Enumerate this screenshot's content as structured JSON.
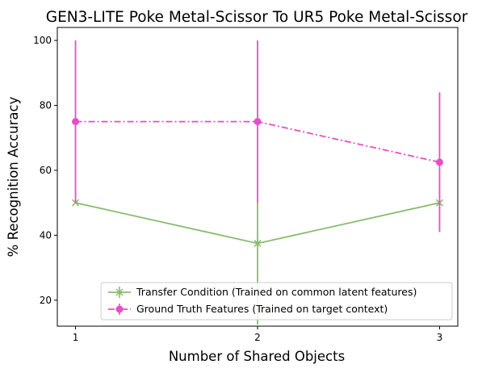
{
  "chart_data": {
    "type": "line",
    "title": "GEN3-LITE Poke Metal-Scissor To UR5 Poke Metal-Scissor",
    "xlabel": "Number of Shared Objects",
    "ylabel": "% Recognition Accuracy",
    "x": [
      1,
      2,
      3
    ],
    "xlim": [
      0.9,
      3.1
    ],
    "ylim": [
      12,
      104
    ],
    "xticks": [
      1,
      2,
      3
    ],
    "yticks": [
      20,
      40,
      60,
      80,
      100
    ],
    "grid": false,
    "legend_position": "lower-right",
    "series": [
      {
        "name": "Transfer Condition (Trained on common latent features)",
        "color": "#88bb6e",
        "linestyle": "solid",
        "marker": "x",
        "values": [
          50,
          37.5,
          50
        ],
        "err_low": [
          50,
          12.5,
          50
        ],
        "err_high": [
          50,
          50,
          50
        ]
      },
      {
        "name": "Ground Truth Features (Trained on target context)",
        "color": "#e64fc3",
        "linestyle": "dashdot",
        "marker": "circle",
        "values": [
          75,
          75,
          62.5
        ],
        "err_low": [
          50,
          50,
          41
        ],
        "err_high": [
          100,
          100,
          84
        ]
      }
    ]
  }
}
